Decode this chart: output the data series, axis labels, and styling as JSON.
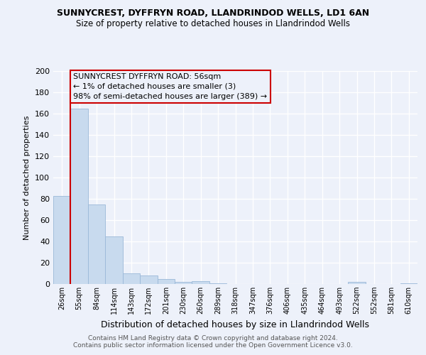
{
  "title1": "SUNNYCREST, DYFFRYN ROAD, LLANDRINDOD WELLS, LD1 6AN",
  "title2": "Size of property relative to detached houses in Llandrindod Wells",
  "xlabel": "Distribution of detached houses by size in Llandrindod Wells",
  "ylabel": "Number of detached properties",
  "footer1": "Contains HM Land Registry data © Crown copyright and database right 2024.",
  "footer2": "Contains public sector information licensed under the Open Government Licence v3.0.",
  "annotation_line1": "SUNNYCREST DYFFRYN ROAD: 56sqm",
  "annotation_line2": "← 1% of detached houses are smaller (3)",
  "annotation_line3": "98% of semi-detached houses are larger (389) →",
  "bar_labels": [
    "26sqm",
    "55sqm",
    "84sqm",
    "114sqm",
    "143sqm",
    "172sqm",
    "201sqm",
    "230sqm",
    "260sqm",
    "289sqm",
    "318sqm",
    "347sqm",
    "376sqm",
    "406sqm",
    "435sqm",
    "464sqm",
    "493sqm",
    "522sqm",
    "552sqm",
    "581sqm",
    "610sqm"
  ],
  "bar_values": [
    83,
    165,
    75,
    45,
    10,
    8,
    5,
    2,
    3,
    1,
    0,
    0,
    0,
    0,
    0,
    0,
    0,
    2,
    0,
    0,
    1
  ],
  "bar_color": "#c8daee",
  "bar_edge_color": "#9ab8d8",
  "background_color": "#edf1fa",
  "grid_color": "#ffffff",
  "red_line_bar_index": 1,
  "annotation_box_edgecolor": "#cc0000",
  "ylim_max": 200,
  "ytick_step": 20,
  "title1_fontsize": 9,
  "title2_fontsize": 8.5,
  "ylabel_fontsize": 8,
  "xlabel_fontsize": 9,
  "tick_fontsize": 8,
  "xtick_fontsize": 7,
  "footer_fontsize": 6.5,
  "annotation_fontsize": 8
}
